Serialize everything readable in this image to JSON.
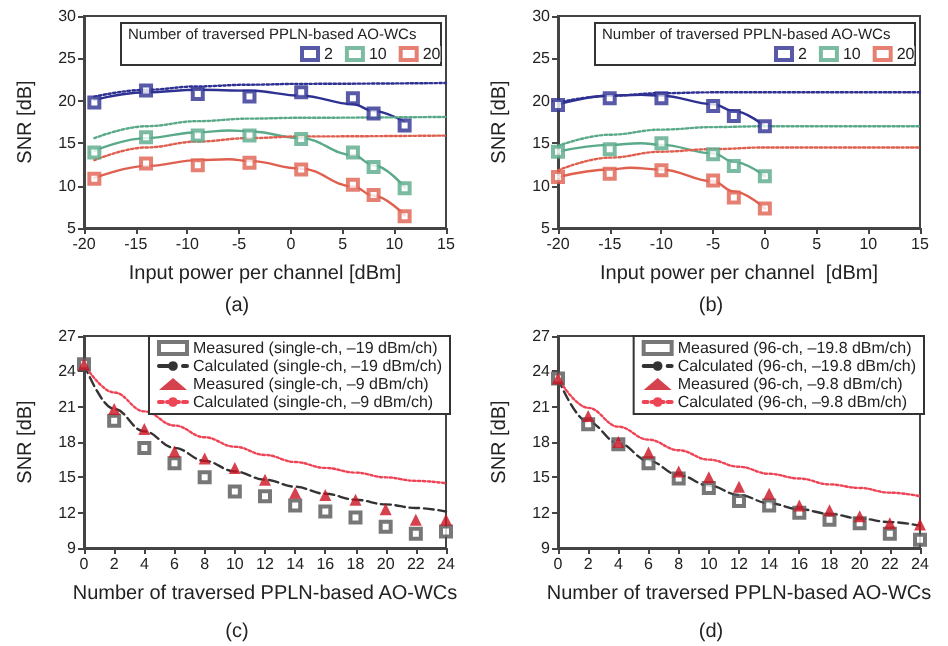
{
  "chart_data": [
    {
      "type": "scatter",
      "xlabel": "Input power per channel [dBm]",
      "ylabel": "SNR [dB]",
      "legend_title": "Number of traversed PPLN-based AO-WCs",
      "annotations": [
        "(a)"
      ],
      "xlim": [
        -20,
        15
      ],
      "xticks": [
        -20,
        -15,
        -10,
        -5,
        0,
        5,
        10,
        15
      ],
      "ylim": [
        5,
        30
      ],
      "yticks": [
        5,
        10,
        15,
        20,
        25,
        30
      ],
      "legend": "top right",
      "series": [
        {
          "name": "2",
          "type": "scatter",
          "marker": "square",
          "color": "#2e3192",
          "x": [
            -19,
            -14,
            -9,
            -4,
            1,
            6,
            8,
            11
          ],
          "values": [
            19.8,
            21.2,
            20.8,
            20.5,
            21,
            20.3,
            18.5,
            17.1
          ]
        },
        {
          "name": "10",
          "type": "scatter",
          "marker": "square",
          "color": "#5aaa8a",
          "x": [
            -19,
            -14,
            -9,
            -4,
            1,
            6,
            8,
            11
          ],
          "values": [
            13.9,
            15.7,
            15.9,
            15.9,
            15.5,
            13.9,
            12.2,
            9.7
          ]
        },
        {
          "name": "20",
          "type": "scatter",
          "marker": "square",
          "color": "#e06050",
          "x": [
            -19,
            -14,
            -9,
            -4,
            1,
            6,
            8,
            11
          ],
          "values": [
            10.8,
            12.6,
            12.4,
            12.7,
            11.9,
            10.1,
            8.9,
            6.4
          ]
        },
        {
          "type": "line",
          "marker": "none",
          "line_style": "solid",
          "color": "#2e3192",
          "x": [
            -19,
            -14,
            -9,
            -4,
            1,
            6,
            8,
            11
          ],
          "values": [
            20.1,
            21,
            21.3,
            21.2,
            20.6,
            19.6,
            18.8,
            17.5
          ]
        },
        {
          "type": "line",
          "marker": "none",
          "line_style": "solid",
          "color": "#5aaa8a",
          "x": [
            -19,
            -14,
            -9,
            -6,
            -4,
            1,
            6,
            8,
            11
          ],
          "values": [
            14.1,
            15.6,
            16.3,
            16.5,
            16.4,
            15.6,
            13.6,
            12.4,
            9.8
          ]
        },
        {
          "type": "line",
          "marker": "none",
          "line_style": "solid",
          "color": "#e06050",
          "x": [
            -19,
            -14,
            -9,
            -6,
            -4,
            1,
            6,
            8,
            11
          ],
          "values": [
            10.9,
            12.3,
            13,
            13.1,
            12.9,
            12,
            9.9,
            8.8,
            6.5
          ]
        },
        {
          "type": "line",
          "marker": "none",
          "line_style": "dotted",
          "color": "#2e3192",
          "x": [
            -19,
            -14,
            -9,
            -4,
            1,
            15
          ],
          "values": [
            20.5,
            21.3,
            21.7,
            21.9,
            22,
            22.1
          ]
        },
        {
          "type": "line",
          "marker": "none",
          "line_style": "dotted",
          "color": "#5aaa8a",
          "x": [
            -19,
            -14,
            -9,
            -4,
            1,
            15
          ],
          "values": [
            15.6,
            17,
            17.6,
            17.9,
            18,
            18.1
          ]
        },
        {
          "type": "line",
          "marker": "none",
          "line_style": "dotted",
          "color": "#e06050",
          "x": [
            -19,
            -14,
            -9,
            -4,
            1,
            15
          ],
          "values": [
            13,
            14.5,
            15.2,
            15.6,
            15.8,
            15.9
          ]
        }
      ]
    },
    {
      "type": "scatter",
      "xlabel": "Input power per channel  [dBm]",
      "ylabel": "SNR [dB]",
      "legend_title": "Number of traversed PPLN-based AO-WCs",
      "annotations": [
        "(b)"
      ],
      "xlim": [
        -20,
        15
      ],
      "xticks": [
        -20,
        -15,
        -10,
        -5,
        0,
        5,
        10,
        15
      ],
      "ylim": [
        5,
        30
      ],
      "yticks": [
        5,
        10,
        15,
        20,
        25,
        30
      ],
      "legend": "top right",
      "series": [
        {
          "name": "2",
          "type": "scatter",
          "marker": "square",
          "color": "#2e3192",
          "x": [
            -20,
            -15,
            -10,
            -5,
            -3,
            0
          ],
          "values": [
            19.5,
            20.3,
            20.3,
            19.4,
            18.2,
            17
          ]
        },
        {
          "name": "10",
          "type": "scatter",
          "marker": "square",
          "color": "#5aaa8a",
          "x": [
            -20,
            -15,
            -10,
            -5,
            -3,
            0
          ],
          "values": [
            14,
            14.3,
            15,
            13.7,
            12.3,
            11.1
          ]
        },
        {
          "name": "20",
          "type": "scatter",
          "marker": "square",
          "color": "#e06050",
          "x": [
            -20,
            -15,
            -10,
            -5,
            -3,
            0
          ],
          "values": [
            11,
            11.4,
            11.8,
            10.6,
            8.6,
            7.3
          ]
        },
        {
          "type": "line",
          "marker": "none",
          "line_style": "solid",
          "color": "#2e3192",
          "x": [
            -20,
            -15,
            -12,
            -10,
            -5,
            -3,
            0
          ],
          "values": [
            19.6,
            20.6,
            20.7,
            20.6,
            19.6,
            18.8,
            17
          ]
        },
        {
          "type": "line",
          "marker": "none",
          "line_style": "solid",
          "color": "#5aaa8a",
          "x": [
            -20,
            -15,
            -12,
            -10,
            -5,
            -3,
            0
          ],
          "values": [
            14,
            14.8,
            15,
            14.8,
            13.8,
            12.8,
            11.1
          ]
        },
        {
          "type": "line",
          "marker": "none",
          "line_style": "solid",
          "color": "#e06050",
          "x": [
            -20,
            -15,
            -13,
            -10,
            -5,
            -3,
            0
          ],
          "values": [
            11,
            11.9,
            12.1,
            11.9,
            10.5,
            9.3,
            7.3
          ]
        },
        {
          "type": "line",
          "marker": "none",
          "line_style": "dotted",
          "color": "#2e3192",
          "x": [
            -20,
            -15,
            -10,
            -5,
            15
          ],
          "values": [
            19.8,
            20.6,
            20.9,
            21,
            21
          ]
        },
        {
          "type": "line",
          "marker": "none",
          "line_style": "dotted",
          "color": "#5aaa8a",
          "x": [
            -20,
            -15,
            -10,
            -5,
            0,
            15
          ],
          "values": [
            14.7,
            16,
            16.6,
            16.9,
            17,
            17
          ]
        },
        {
          "type": "line",
          "marker": "none",
          "line_style": "dotted",
          "color": "#e06050",
          "x": [
            -20,
            -15,
            -10,
            -5,
            0,
            15
          ],
          "values": [
            11.8,
            13.3,
            14,
            14.3,
            14.5,
            14.5
          ]
        }
      ]
    },
    {
      "type": "scatter",
      "xlabel": "Number of traversed PPLN-based AO-WCs",
      "ylabel": "SNR [dB]",
      "annotations": [
        "(c)"
      ],
      "xlim": [
        0,
        24
      ],
      "xticks": [
        0,
        2,
        4,
        6,
        8,
        10,
        12,
        14,
        16,
        18,
        20,
        22,
        24
      ],
      "ylim": [
        9,
        27
      ],
      "yticks": [
        9,
        12,
        15,
        18,
        21,
        24,
        27
      ],
      "legend": "top right",
      "series": [
        {
          "name": "Measured (single-ch, –19 dBm/ch)",
          "type": "scatter",
          "marker": "square",
          "color": "#555555",
          "x": [
            0,
            2,
            4,
            6,
            8,
            10,
            12,
            14,
            16,
            18,
            20,
            22,
            24
          ],
          "values": [
            24.6,
            19.8,
            17.5,
            16.2,
            15,
            13.8,
            13.4,
            12.6,
            12.1,
            11.6,
            10.8,
            10.2,
            10.4
          ]
        },
        {
          "name": "Calculated (single-ch, –19 dBm/ch)",
          "type": "line",
          "marker": "none",
          "line_style": "dashed",
          "color": "#333333",
          "x": [
            0,
            2,
            4,
            6,
            8,
            10,
            12,
            14,
            16,
            18,
            20,
            22,
            24
          ],
          "values": [
            24.6,
            20.8,
            18.9,
            17.5,
            16.4,
            15.5,
            14.8,
            14.2,
            13.6,
            13.1,
            12.7,
            12.4,
            12.1
          ]
        },
        {
          "name": "Measured (single-ch, –9 dBm/ch)",
          "type": "scatter",
          "marker": "triangle",
          "color": "#cc1122",
          "x": [
            0,
            2,
            4,
            6,
            8,
            10,
            12,
            14,
            16,
            18,
            20,
            22,
            24
          ],
          "values": [
            24.6,
            20.8,
            19.1,
            17.2,
            16.6,
            15.8,
            14.8,
            13.7,
            13.5,
            13.1,
            12.3,
            11.4,
            11.4
          ]
        },
        {
          "name": "Calculated (single-ch, –9 dBm/ch)",
          "type": "line",
          "marker": "none",
          "line_style": "dotted",
          "color": "#ee4455",
          "x": [
            0,
            2,
            4,
            6,
            8,
            10,
            12,
            14,
            16,
            18,
            20,
            22,
            24
          ],
          "values": [
            24.6,
            22.2,
            20.6,
            19.4,
            18.4,
            17.6,
            16.9,
            16.3,
            15.8,
            15.4,
            15,
            14.7,
            14.5
          ]
        }
      ]
    },
    {
      "type": "scatter",
      "xlabel": "Number of traversed PPLN-based AO-WCs",
      "ylabel": "SNR [dB]",
      "annotations": [
        "(d)"
      ],
      "xlim": [
        0,
        24
      ],
      "xticks": [
        0,
        2,
        4,
        6,
        8,
        10,
        12,
        14,
        16,
        18,
        20,
        22,
        24
      ],
      "ylim": [
        9,
        27
      ],
      "yticks": [
        9,
        12,
        15,
        18,
        21,
        24,
        27
      ],
      "legend": "top right",
      "series": [
        {
          "name": "Measured (96-ch, –19.8 dBm/ch)",
          "type": "scatter",
          "marker": "square",
          "color": "#555555",
          "x": [
            0,
            2,
            4,
            6,
            8,
            10,
            12,
            14,
            16,
            18,
            20,
            22,
            24
          ],
          "values": [
            23.4,
            19.5,
            17.8,
            16.2,
            14.9,
            14.1,
            13,
            12.6,
            12,
            11.4,
            11.1,
            10.2,
            9.7
          ]
        },
        {
          "name": "Calculated (96-ch, –19.8 dBm/ch)",
          "type": "line",
          "marker": "none",
          "line_style": "dashed",
          "color": "#333333",
          "x": [
            0,
            2,
            4,
            6,
            8,
            10,
            12,
            14,
            16,
            18,
            20,
            22,
            24
          ],
          "values": [
            23.4,
            19.7,
            17.9,
            16.4,
            15.2,
            14.3,
            13.5,
            12.8,
            12.3,
            11.9,
            11.5,
            11.2,
            10.9
          ]
        },
        {
          "name": "Measured (96-ch, –9.8 dBm/ch)",
          "type": "scatter",
          "marker": "triangle",
          "color": "#cc1122",
          "x": [
            0,
            2,
            4,
            6,
            8,
            10,
            12,
            14,
            16,
            18,
            20,
            22,
            24
          ],
          "values": [
            23.4,
            20.2,
            18,
            17.1,
            15.5,
            15,
            14.2,
            13.6,
            12.6,
            12.2,
            11.7,
            11.1,
            11
          ]
        },
        {
          "name": "Calculated (96-ch, –9.8 dBm/ch)",
          "type": "line",
          "marker": "none",
          "line_style": "dotted",
          "color": "#ee4455",
          "x": [
            0,
            2,
            4,
            6,
            8,
            10,
            12,
            14,
            16,
            18,
            20,
            22,
            24
          ],
          "values": [
            23.4,
            20.9,
            19.3,
            18.2,
            17.3,
            16.5,
            15.9,
            15.3,
            14.9,
            14.4,
            14.1,
            13.7,
            13.4
          ]
        }
      ]
    }
  ]
}
